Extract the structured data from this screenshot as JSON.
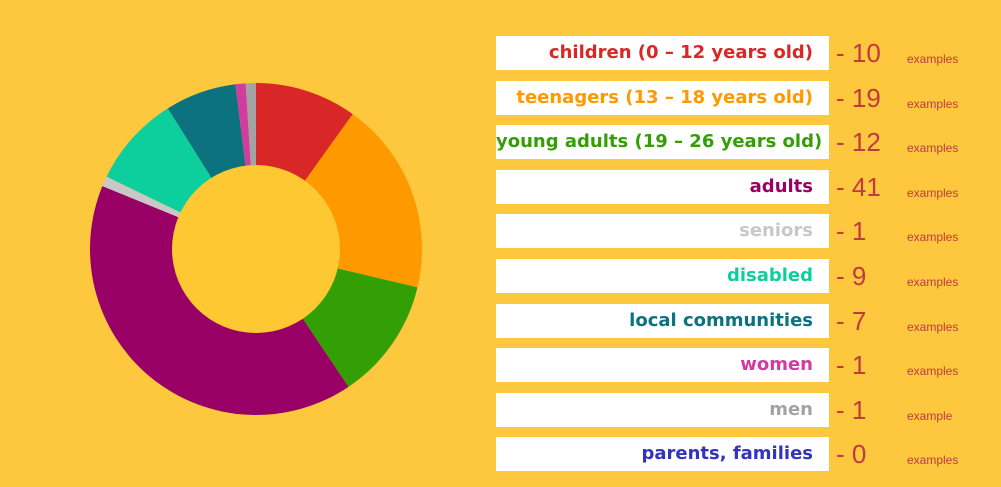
{
  "chart_data": {
    "type": "pie",
    "series": [
      {
        "name": "children (0 – 12 years old)",
        "value": 10,
        "unit": "examples",
        "color": "#d92727"
      },
      {
        "name": "teenagers (13 – 18 years old)",
        "value": 19,
        "unit": "examples",
        "color": "#ff9900"
      },
      {
        "name": "young adults (19 – 26 years old)",
        "value": 12,
        "unit": "examples",
        "color": "#349f04"
      },
      {
        "name": "adults",
        "value": 41,
        "unit": "examples",
        "color": "#990066"
      },
      {
        "name": "seniors",
        "value": 1,
        "unit": "examples",
        "color": "#c8c8c8"
      },
      {
        "name": "disabled",
        "value": 9,
        "unit": "examples",
        "color": "#0ccf9d"
      },
      {
        "name": "local communities",
        "value": 7,
        "unit": "examples",
        "color": "#0d7280"
      },
      {
        "name": "women",
        "value": 1,
        "unit": "examples",
        "color": "#d23c9e"
      },
      {
        "name": "men",
        "value": 1,
        "unit": "example",
        "color": "#a3a3a3"
      },
      {
        "name": "parents, families",
        "value": 0,
        "unit": "examples",
        "color": "#3333bb"
      }
    ],
    "legend_position": "right",
    "donut_hole_color": "#fdc832"
  }
}
